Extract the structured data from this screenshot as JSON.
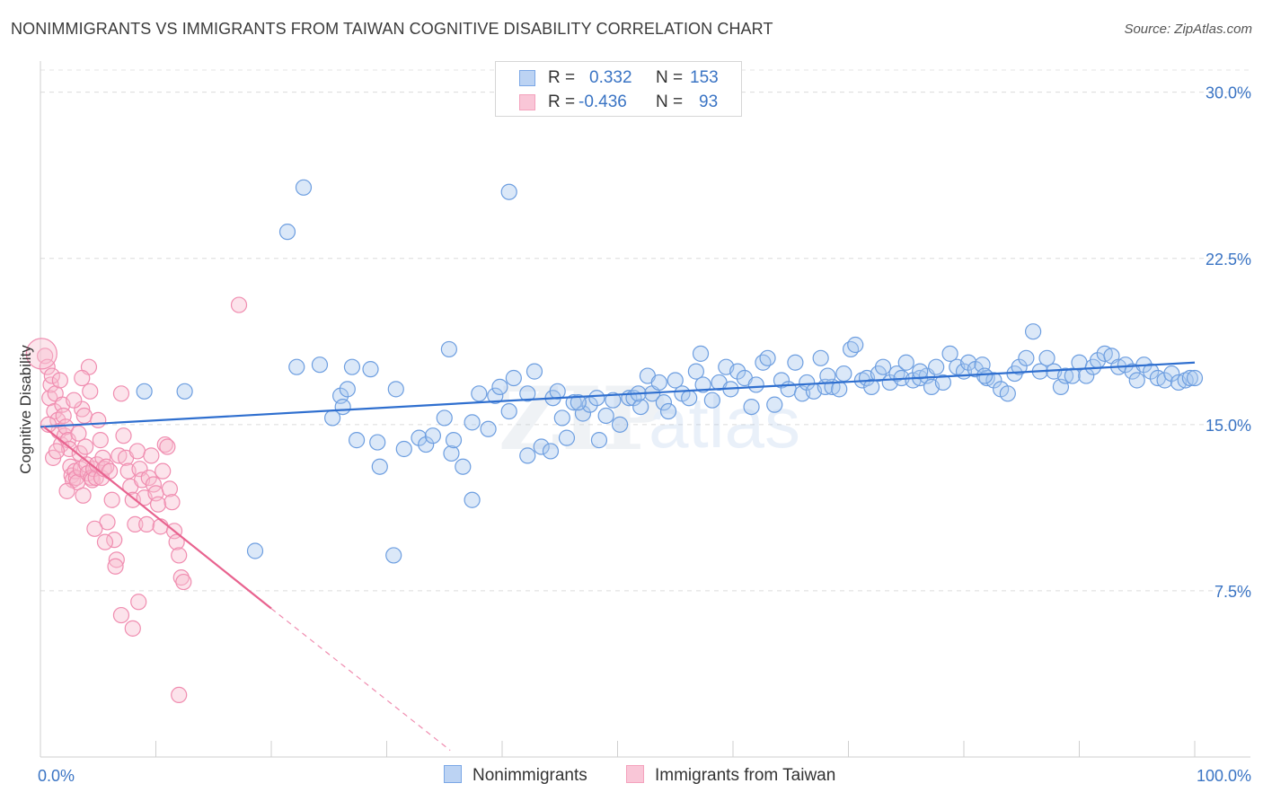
{
  "header": {
    "title": "NONIMMIGRANTS VS IMMIGRANTS FROM TAIWAN COGNITIVE DISABILITY CORRELATION CHART",
    "source": "Source: ZipAtlas.com"
  },
  "legend": {
    "rows": [
      {
        "r_label": "R =",
        "r_value": "0.332",
        "n_label": "N =",
        "n_value": "153",
        "color": "#7aa7e6"
      },
      {
        "r_label": "R =",
        "r_value": "-0.436",
        "n_label": "N =",
        "n_value": "93",
        "color": "#f4a2bd"
      }
    ]
  },
  "watermark": {
    "zip": "ZIP",
    "atlas": "atlas"
  },
  "chart_data": {
    "type": "scatter",
    "title": "NONIMMIGRANTS VS IMMIGRANTS FROM TAIWAN COGNITIVE DISABILITY CORRELATION CHART",
    "xlabel": "",
    "ylabel": "Cognitive Disability",
    "xlim": [
      0,
      100
    ],
    "ylim": [
      0,
      31
    ],
    "x_tick_labels": [
      "0.0%",
      "100.0%"
    ],
    "y_ticks": [
      7.5,
      15.0,
      22.5,
      30.0
    ],
    "y_tick_labels": [
      "7.5%",
      "15.0%",
      "22.5%",
      "30.0%"
    ],
    "grid": "horizontal dashed",
    "legend_position": "top-center",
    "colors": {
      "nonimmigrants": "#6d9ee0",
      "taiwan": "#f08db0",
      "blue_line": "#2f6fcf",
      "pink_line": "#e8638f"
    },
    "series": [
      {
        "name": "Nonimmigrants",
        "color": "#6d9ee0",
        "trend": {
          "x": [
            0,
            100
          ],
          "y": [
            14.9,
            17.8
          ]
        },
        "points": [
          [
            22.8,
            25.7
          ],
          [
            40.6,
            25.5
          ],
          [
            21.4,
            23.7
          ],
          [
            18.6,
            9.3
          ],
          [
            30.6,
            9.1
          ],
          [
            37.4,
            11.6
          ],
          [
            29.4,
            13.1
          ],
          [
            9.0,
            16.5
          ],
          [
            12.5,
            16.5
          ],
          [
            22.2,
            17.6
          ],
          [
            24.2,
            17.7
          ],
          [
            26.0,
            16.3
          ],
          [
            26.6,
            16.6
          ],
          [
            27.0,
            17.6
          ],
          [
            28.6,
            17.5
          ],
          [
            30.8,
            16.6
          ],
          [
            26.2,
            15.8
          ],
          [
            25.3,
            15.3
          ],
          [
            27.4,
            14.3
          ],
          [
            29.2,
            14.2
          ],
          [
            31.5,
            13.9
          ],
          [
            32.8,
            14.4
          ],
          [
            33.4,
            14.1
          ],
          [
            34.0,
            14.5
          ],
          [
            35.0,
            15.3
          ],
          [
            35.6,
            13.7
          ],
          [
            35.8,
            14.3
          ],
          [
            36.6,
            13.1
          ],
          [
            35.4,
            18.4
          ],
          [
            37.4,
            15.1
          ],
          [
            38.0,
            16.4
          ],
          [
            38.8,
            14.8
          ],
          [
            39.4,
            16.3
          ],
          [
            39.8,
            16.7
          ],
          [
            40.6,
            15.6
          ],
          [
            41.0,
            17.1
          ],
          [
            42.2,
            16.4
          ],
          [
            42.8,
            17.4
          ],
          [
            42.2,
            13.6
          ],
          [
            43.4,
            14.0
          ],
          [
            44.2,
            13.8
          ],
          [
            44.4,
            16.2
          ],
          [
            44.8,
            16.5
          ],
          [
            45.2,
            15.3
          ],
          [
            45.6,
            14.4
          ],
          [
            46.2,
            16.0
          ],
          [
            47.0,
            15.5
          ],
          [
            47.6,
            15.9
          ],
          [
            48.2,
            16.2
          ],
          [
            48.4,
            14.3
          ],
          [
            49.0,
            15.4
          ],
          [
            49.6,
            16.1
          ],
          [
            50.2,
            15.0
          ],
          [
            51.0,
            16.2
          ],
          [
            51.4,
            16.2
          ],
          [
            52.0,
            15.8
          ],
          [
            52.6,
            17.2
          ],
          [
            53.0,
            16.4
          ],
          [
            53.6,
            16.9
          ],
          [
            54.0,
            16.0
          ],
          [
            54.4,
            15.6
          ],
          [
            55.0,
            17.0
          ],
          [
            55.6,
            16.4
          ],
          [
            56.2,
            16.2
          ],
          [
            56.8,
            17.4
          ],
          [
            57.4,
            16.8
          ],
          [
            58.2,
            16.1
          ],
          [
            58.8,
            16.9
          ],
          [
            59.4,
            17.6
          ],
          [
            59.8,
            16.6
          ],
          [
            60.4,
            17.4
          ],
          [
            61.0,
            17.1
          ],
          [
            61.6,
            15.8
          ],
          [
            62.0,
            16.8
          ],
          [
            62.6,
            17.8
          ],
          [
            63.0,
            18.0
          ],
          [
            63.6,
            15.9
          ],
          [
            64.2,
            17.0
          ],
          [
            64.8,
            16.6
          ],
          [
            65.4,
            17.8
          ],
          [
            66.0,
            16.4
          ],
          [
            66.4,
            16.9
          ],
          [
            67.0,
            16.5
          ],
          [
            67.6,
            18.0
          ],
          [
            68.0,
            16.7
          ],
          [
            68.6,
            16.7
          ],
          [
            69.2,
            16.6
          ],
          [
            69.6,
            17.3
          ],
          [
            70.2,
            18.4
          ],
          [
            70.6,
            18.6
          ],
          [
            71.2,
            17.0
          ],
          [
            71.6,
            17.1
          ],
          [
            72.0,
            16.7
          ],
          [
            72.6,
            17.3
          ],
          [
            73.0,
            17.6
          ],
          [
            73.6,
            16.9
          ],
          [
            74.2,
            17.3
          ],
          [
            74.6,
            17.1
          ],
          [
            75.0,
            17.8
          ],
          [
            75.6,
            17.0
          ],
          [
            76.2,
            17.1
          ],
          [
            76.8,
            17.2
          ],
          [
            77.2,
            16.7
          ],
          [
            77.6,
            17.6
          ],
          [
            78.2,
            16.9
          ],
          [
            78.8,
            18.2
          ],
          [
            79.4,
            17.6
          ],
          [
            80.0,
            17.4
          ],
          [
            80.4,
            17.8
          ],
          [
            81.0,
            17.5
          ],
          [
            81.6,
            17.7
          ],
          [
            82.0,
            17.1
          ],
          [
            82.6,
            17.0
          ],
          [
            83.2,
            16.6
          ],
          [
            83.8,
            16.4
          ],
          [
            84.4,
            17.3
          ],
          [
            84.8,
            17.6
          ],
          [
            85.4,
            18.0
          ],
          [
            86.0,
            19.2
          ],
          [
            86.6,
            17.4
          ],
          [
            87.2,
            18.0
          ],
          [
            87.8,
            17.4
          ],
          [
            88.4,
            16.7
          ],
          [
            88.8,
            17.2
          ],
          [
            89.4,
            17.2
          ],
          [
            90.0,
            17.8
          ],
          [
            90.6,
            17.2
          ],
          [
            91.2,
            17.6
          ],
          [
            91.6,
            17.9
          ],
          [
            92.2,
            18.2
          ],
          [
            92.8,
            18.1
          ],
          [
            93.4,
            17.6
          ],
          [
            94.0,
            17.7
          ],
          [
            94.6,
            17.4
          ],
          [
            95.0,
            17.0
          ],
          [
            95.6,
            17.7
          ],
          [
            96.2,
            17.4
          ],
          [
            96.8,
            17.1
          ],
          [
            97.4,
            17.0
          ],
          [
            98.0,
            17.3
          ],
          [
            98.6,
            16.9
          ],
          [
            99.2,
            17.0
          ],
          [
            99.6,
            17.1
          ],
          [
            100.0,
            17.1
          ],
          [
            76.2,
            17.4
          ],
          [
            68.2,
            17.2
          ],
          [
            57.2,
            18.2
          ],
          [
            46.6,
            16.0
          ],
          [
            51.8,
            16.4
          ],
          [
            81.8,
            17.2
          ]
        ]
      },
      {
        "name": "Immigrants from Taiwan",
        "color": "#f08db0",
        "trend": {
          "x": [
            0.3,
            20.0
          ],
          "y": [
            14.9,
            6.7
          ]
        },
        "trend_dashed": {
          "x": [
            20.0,
            35.5
          ],
          "y": [
            6.7,
            0.3
          ]
        },
        "points": [
          [
            0.4,
            18.1
          ],
          [
            0.6,
            17.6
          ],
          [
            0.8,
            16.2
          ],
          [
            0.9,
            16.8
          ],
          [
            1.0,
            17.2
          ],
          [
            1.2,
            15.6
          ],
          [
            1.3,
            16.4
          ],
          [
            1.5,
            15.2
          ],
          [
            1.6,
            14.7
          ],
          [
            1.8,
            14.1
          ],
          [
            1.9,
            15.9
          ],
          [
            2.0,
            15.4
          ],
          [
            2.1,
            14.5
          ],
          [
            2.2,
            14.9
          ],
          [
            2.4,
            14.3
          ],
          [
            2.5,
            13.9
          ],
          [
            2.6,
            13.1
          ],
          [
            2.7,
            12.7
          ],
          [
            2.8,
            12.5
          ],
          [
            3.0,
            12.9
          ],
          [
            3.1,
            12.6
          ],
          [
            3.2,
            12.4
          ],
          [
            3.3,
            14.6
          ],
          [
            3.4,
            13.7
          ],
          [
            3.5,
            13.0
          ],
          [
            3.6,
            15.7
          ],
          [
            3.8,
            15.4
          ],
          [
            3.9,
            14.0
          ],
          [
            4.0,
            13.2
          ],
          [
            4.1,
            12.8
          ],
          [
            4.2,
            17.6
          ],
          [
            4.3,
            16.5
          ],
          [
            4.4,
            12.6
          ],
          [
            4.5,
            12.5
          ],
          [
            4.6,
            13.0
          ],
          [
            4.8,
            12.6
          ],
          [
            4.9,
            13.2
          ],
          [
            5.0,
            15.2
          ],
          [
            5.2,
            14.3
          ],
          [
            5.3,
            12.6
          ],
          [
            5.4,
            13.5
          ],
          [
            5.5,
            13.0
          ],
          [
            5.7,
            13.1
          ],
          [
            5.8,
            10.6
          ],
          [
            6.0,
            12.9
          ],
          [
            6.2,
            11.6
          ],
          [
            6.4,
            9.8
          ],
          [
            6.6,
            8.9
          ],
          [
            6.8,
            13.6
          ],
          [
            7.0,
            16.4
          ],
          [
            7.2,
            14.5
          ],
          [
            7.4,
            13.5
          ],
          [
            7.6,
            12.9
          ],
          [
            7.8,
            12.2
          ],
          [
            8.0,
            11.6
          ],
          [
            8.2,
            10.5
          ],
          [
            8.4,
            13.8
          ],
          [
            8.6,
            13.0
          ],
          [
            8.8,
            12.5
          ],
          [
            9.0,
            11.7
          ],
          [
            9.2,
            10.5
          ],
          [
            9.4,
            12.6
          ],
          [
            9.6,
            13.6
          ],
          [
            9.8,
            12.3
          ],
          [
            10.0,
            11.9
          ],
          [
            10.2,
            11.4
          ],
          [
            10.4,
            10.4
          ],
          [
            10.6,
            12.9
          ],
          [
            10.8,
            14.1
          ],
          [
            11.0,
            14.0
          ],
          [
            11.2,
            12.1
          ],
          [
            11.4,
            11.5
          ],
          [
            11.6,
            10.2
          ],
          [
            11.8,
            9.7
          ],
          [
            12.0,
            9.1
          ],
          [
            12.2,
            8.1
          ],
          [
            12.4,
            7.9
          ],
          [
            12.0,
            2.8
          ],
          [
            17.2,
            20.4
          ],
          [
            6.5,
            8.6
          ],
          [
            7.0,
            6.4
          ],
          [
            8.0,
            5.8
          ],
          [
            8.5,
            7.0
          ],
          [
            5.6,
            9.7
          ],
          [
            3.7,
            11.8
          ],
          [
            4.7,
            10.3
          ],
          [
            2.3,
            12.0
          ],
          [
            1.1,
            13.5
          ],
          [
            1.7,
            17.0
          ],
          [
            2.9,
            16.1
          ],
          [
            3.6,
            17.1
          ],
          [
            0.7,
            15.0
          ],
          [
            1.4,
            13.8
          ]
        ]
      }
    ]
  }
}
